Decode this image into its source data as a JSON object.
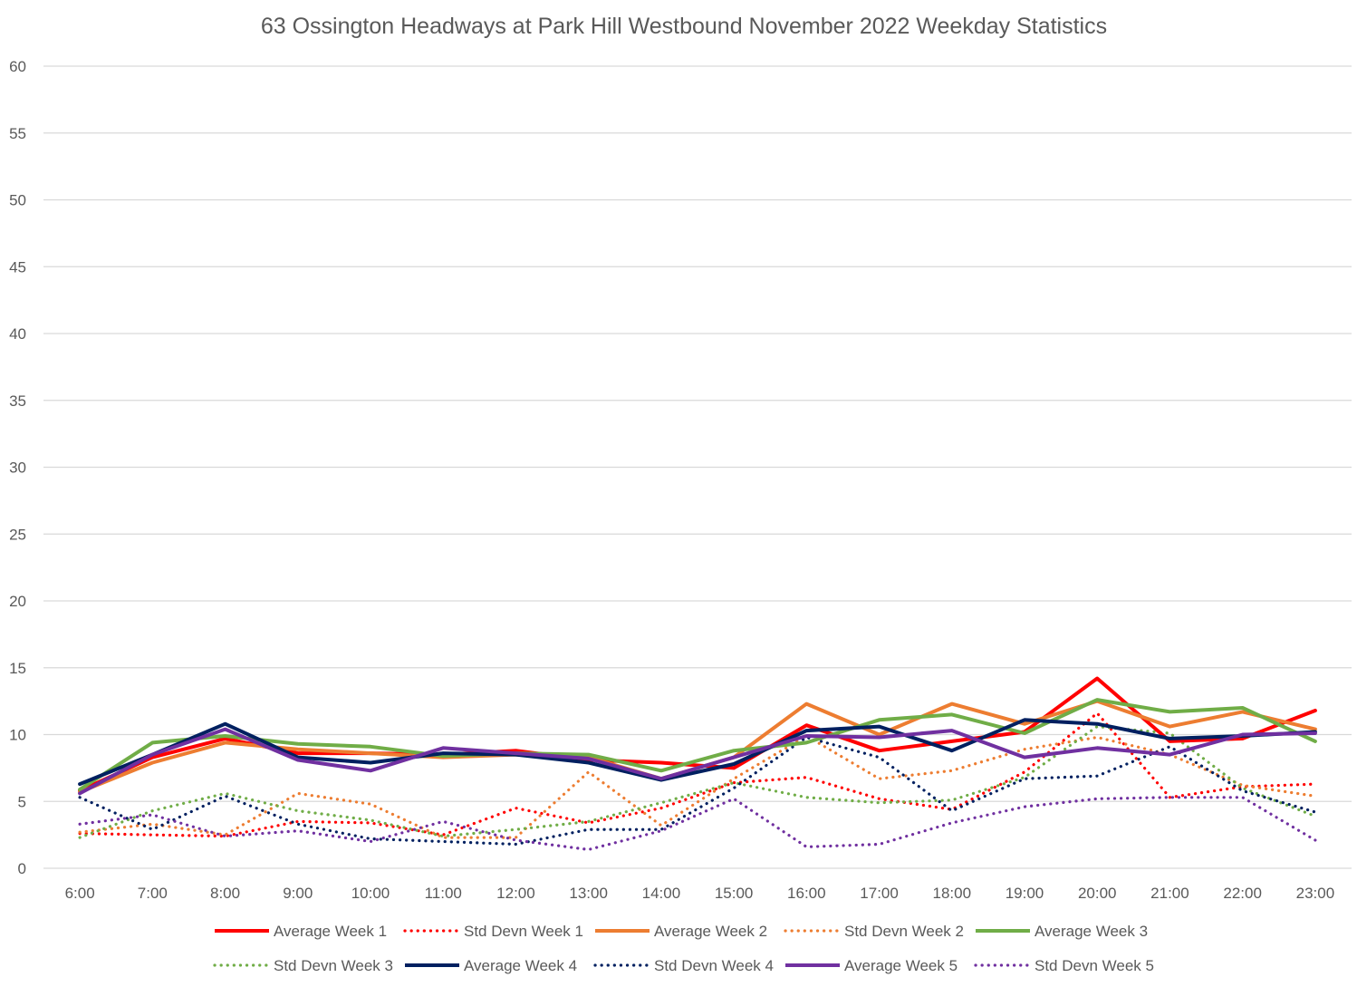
{
  "chart_data": {
    "type": "line",
    "title": "63 Ossington Headways at Park Hill Westbound November 2022 Weekday Statistics",
    "xlabel": "",
    "ylabel": "",
    "ylim": [
      0,
      60
    ],
    "yticks": [
      "0",
      "5",
      "10",
      "15",
      "20",
      "25",
      "30",
      "35",
      "40",
      "45",
      "50",
      "55",
      "60"
    ],
    "grid": true,
    "legend_position": "bottom",
    "categories": [
      "6:00",
      "7:00",
      "8:00",
      "9:00",
      "10:00",
      "11:00",
      "12:00",
      "13:00",
      "14:00",
      "15:00",
      "16:00",
      "17:00",
      "18:00",
      "19:00",
      "20:00",
      "21:00",
      "22:00",
      "23:00"
    ],
    "series": [
      {
        "name": "Average Week 1",
        "color": "#ff0000",
        "style": "solid",
        "values": [
          5.8,
          8.3,
          9.7,
          8.6,
          8.6,
          8.5,
          8.8,
          8.1,
          7.9,
          7.5,
          10.7,
          8.8,
          9.5,
          10.2,
          14.2,
          9.5,
          9.7,
          11.8
        ]
      },
      {
        "name": "Std Devn Week 1",
        "color": "#ff0000",
        "style": "dotted",
        "values": [
          2.6,
          2.5,
          2.4,
          3.5,
          3.4,
          2.5,
          4.5,
          3.4,
          4.5,
          6.4,
          6.8,
          5.2,
          4.4,
          7.2,
          11.6,
          5.3,
          6.1,
          6.3
        ]
      },
      {
        "name": "Average Week 2",
        "color": "#ed7d31",
        "style": "solid",
        "values": [
          5.7,
          7.9,
          9.4,
          8.9,
          8.6,
          8.3,
          8.5,
          8.3,
          6.7,
          8.3,
          12.3,
          10.0,
          12.3,
          10.8,
          12.5,
          10.6,
          11.7,
          10.4
        ]
      },
      {
        "name": "Std Devn Week 2",
        "color": "#ed7d31",
        "style": "dotted",
        "values": [
          2.7,
          3.3,
          2.5,
          5.6,
          4.8,
          2.3,
          2.3,
          7.2,
          3.2,
          6.7,
          9.9,
          6.7,
          7.3,
          8.9,
          9.8,
          8.5,
          6.2,
          5.4
        ]
      },
      {
        "name": "Average Week 3",
        "color": "#70ad47",
        "style": "solid",
        "values": [
          5.9,
          9.4,
          9.9,
          9.3,
          9.1,
          8.4,
          8.6,
          8.5,
          7.3,
          8.8,
          9.4,
          11.1,
          11.5,
          10.1,
          12.6,
          11.7,
          12.0,
          9.5
        ]
      },
      {
        "name": "Std Devn Week 3",
        "color": "#70ad47",
        "style": "dotted",
        "values": [
          2.3,
          4.3,
          5.6,
          4.3,
          3.6,
          2.4,
          2.9,
          3.5,
          4.9,
          6.4,
          5.3,
          4.9,
          5.1,
          6.8,
          10.6,
          10.1,
          6.0,
          3.9
        ]
      },
      {
        "name": "Average Week 4",
        "color": "#002060",
        "style": "solid",
        "values": [
          6.3,
          8.5,
          10.8,
          8.3,
          7.9,
          8.6,
          8.5,
          7.9,
          6.6,
          7.8,
          10.3,
          10.6,
          8.8,
          11.1,
          10.8,
          9.7,
          9.9,
          10.2
        ]
      },
      {
        "name": "Std Devn Week 4",
        "color": "#002060",
        "style": "dotted",
        "values": [
          5.3,
          2.9,
          5.4,
          3.3,
          2.2,
          2.0,
          1.8,
          2.9,
          2.9,
          6.0,
          9.8,
          8.3,
          4.3,
          6.7,
          6.9,
          9.1,
          5.8,
          4.2
        ]
      },
      {
        "name": "Average Week 5",
        "color": "#7030a0",
        "style": "solid",
        "values": [
          5.6,
          8.5,
          10.4,
          8.1,
          7.3,
          9.0,
          8.6,
          8.2,
          6.7,
          8.3,
          9.9,
          9.8,
          10.3,
          8.3,
          9.0,
          8.5,
          10.0,
          10.1
        ]
      },
      {
        "name": "Std Devn Week 5",
        "color": "#7030a0",
        "style": "dotted",
        "values": [
          3.3,
          4.0,
          2.4,
          2.8,
          2.0,
          3.5,
          2.1,
          1.4,
          2.8,
          5.2,
          1.6,
          1.8,
          3.4,
          4.6,
          5.2,
          5.3,
          5.3,
          2.1
        ]
      }
    ]
  }
}
